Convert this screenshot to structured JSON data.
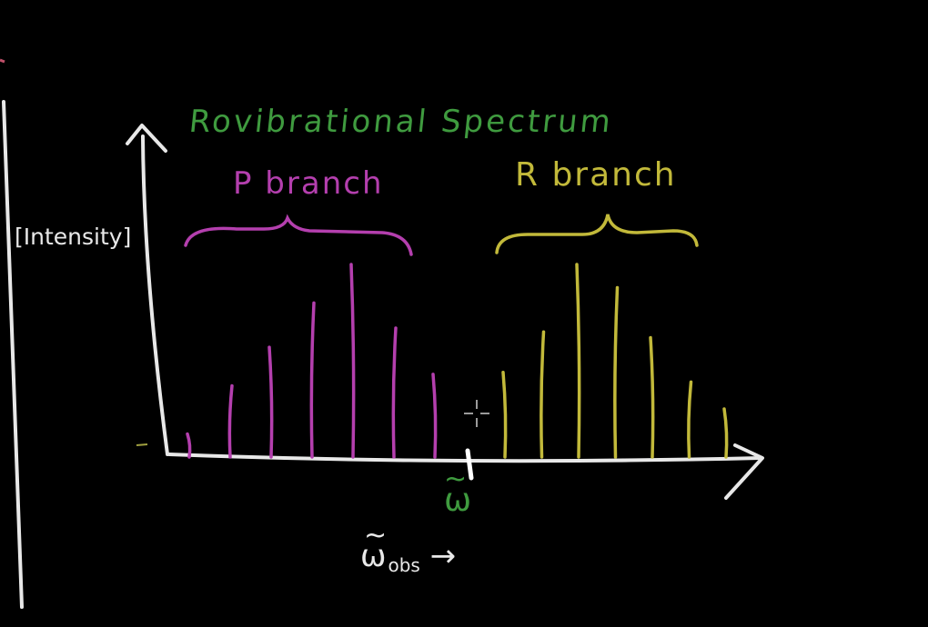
{
  "diagram": {
    "title": "Rovibrational Spectrum",
    "y_axis_label": "Intensity",
    "x_axis_label": {
      "symbol": "ω",
      "tilde": "~",
      "subscript": "obs",
      "arrow": "→"
    },
    "center_marker": {
      "symbol": "ω",
      "tilde": "~"
    },
    "branches": [
      {
        "name": "P branch",
        "color": "#b43fae",
        "relative_intensities": [
          0.12,
          0.37,
          0.57,
          0.8,
          1.0,
          0.67,
          0.43
        ]
      },
      {
        "name": "R branch",
        "color": "#c2b93a",
        "relative_intensities": [
          0.44,
          0.65,
          1.0,
          0.88,
          0.62,
          0.39,
          0.25
        ]
      }
    ],
    "colors": {
      "background": "#000000",
      "axes": "#e8e8e8",
      "title": "#3f9b3f",
      "center_marker": "#3f9b3f"
    },
    "cursor_icon": "crosshair-cursor-icon"
  }
}
